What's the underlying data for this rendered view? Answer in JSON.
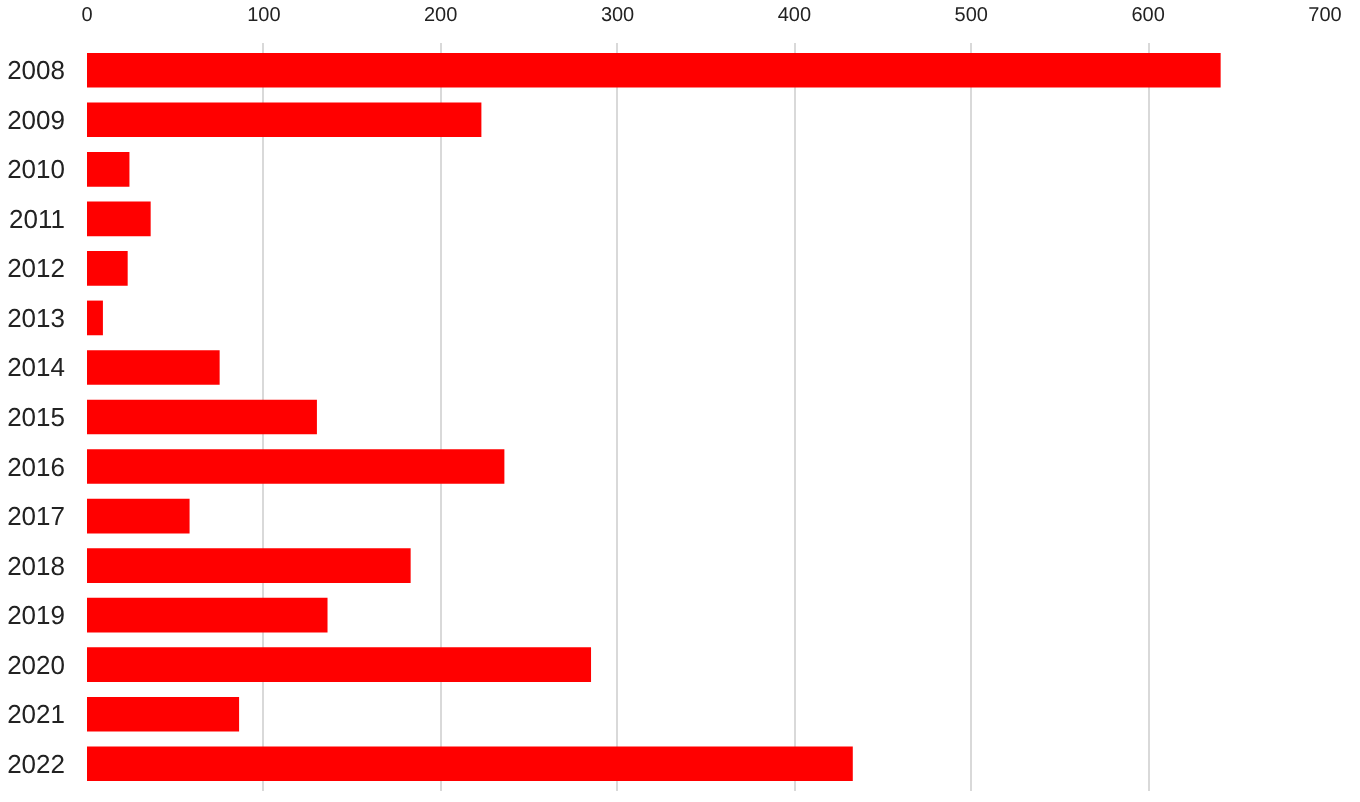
{
  "chart_data": {
    "type": "bar",
    "orientation": "horizontal",
    "categories": [
      "2008",
      "2009",
      "2010",
      "2011",
      "2012",
      "2013",
      "2014",
      "2015",
      "2016",
      "2017",
      "2018",
      "2019",
      "2020",
      "2021",
      "2022"
    ],
    "values": [
      641,
      223,
      24,
      36,
      23,
      9,
      75,
      130,
      236,
      58,
      183,
      136,
      285,
      86,
      433
    ],
    "color": "#ff0000",
    "xlim": [
      0,
      700
    ],
    "xticks": [
      0,
      100,
      200,
      300,
      400,
      500,
      600,
      700
    ],
    "grid": "x"
  }
}
